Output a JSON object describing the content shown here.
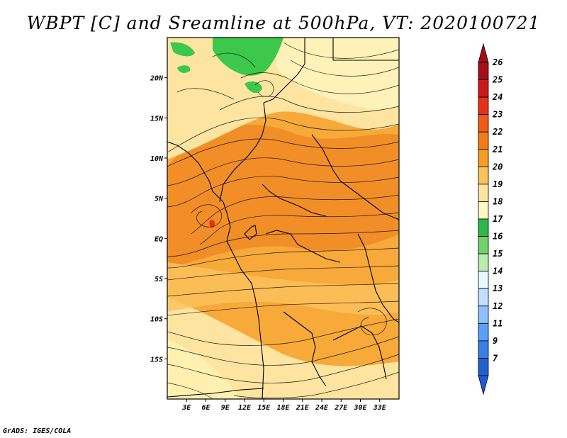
{
  "title": "WBPT [C] and Sreamline at 500hPa, VT: 2020100721",
  "credit": "GrADS: IGES/COLA",
  "map": {
    "lon_range": [
      0,
      36
    ],
    "lat_range": [
      -20,
      25
    ],
    "x_ticks": [
      "3E",
      "6E",
      "9E",
      "12E",
      "15E",
      "18E",
      "21E",
      "24E",
      "27E",
      "30E",
      "33E"
    ],
    "x_tick_values": [
      3,
      6,
      9,
      12,
      15,
      18,
      21,
      24,
      27,
      30,
      33
    ],
    "y_ticks": [
      "20N",
      "15N",
      "10N",
      "5N",
      "EQ",
      "5S",
      "10S",
      "15S"
    ],
    "y_tick_values": [
      20,
      15,
      10,
      5,
      0,
      -5,
      -10,
      -15
    ]
  },
  "legend": {
    "labels": [
      "26",
      "25",
      "24",
      "23",
      "22",
      "21",
      "20",
      "19",
      "18",
      "17",
      "16",
      "15",
      "14",
      "13",
      "12",
      "11",
      "9",
      "7"
    ],
    "colors": [
      "#a50f15",
      "#cb181d",
      "#e6301a",
      "#f35b13",
      "#f57c12",
      "#f79d23",
      "#fbc25c",
      "#fde4a0",
      "#fff7c4",
      "#2eb84a",
      "#6fd36a",
      "#b8ecb0",
      "#e8f8ff",
      "#bfe0ff",
      "#8ec2ff",
      "#5aa0f5",
      "#3a7fe6",
      "#2160d0"
    ],
    "top_color": "#a50f15",
    "bottom_color": "#1d5bd6"
  },
  "colors": {
    "field_base": "#f7a93a",
    "field_warm": "#f08a26",
    "field_light": "#fde4a0",
    "field_pale": "#fff7c4",
    "green": "#3cc84a",
    "streamline": "#000000"
  }
}
